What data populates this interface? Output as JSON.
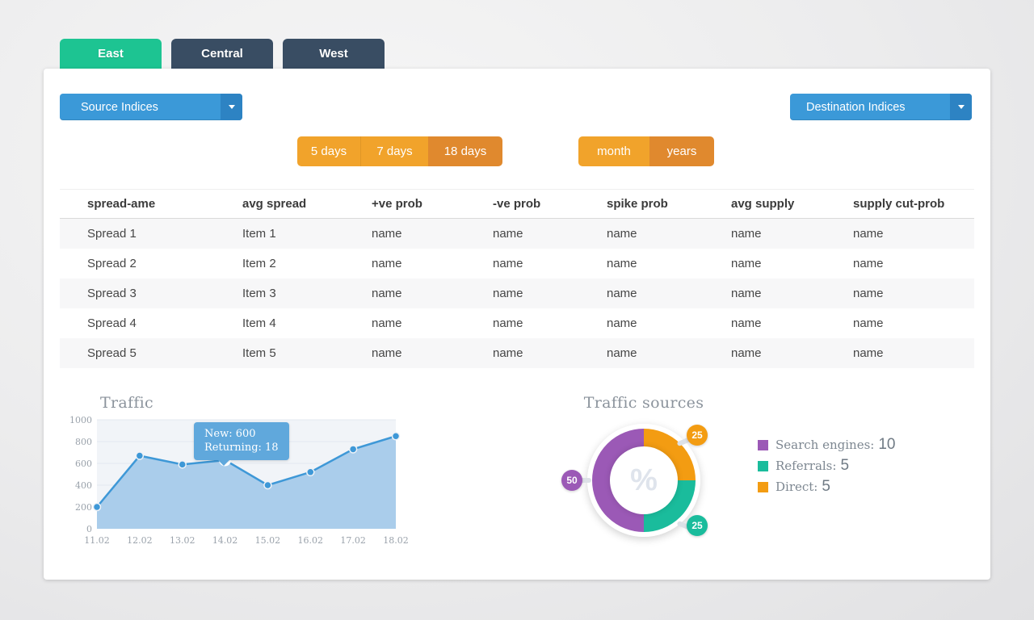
{
  "tabs": [
    {
      "label": "East",
      "active": true
    },
    {
      "label": "Central",
      "active": false
    },
    {
      "label": "West",
      "active": false
    }
  ],
  "filters": {
    "source_dropdown": {
      "label": "Source Indices"
    },
    "destination_dropdown": {
      "label": "Destination Indices"
    },
    "day_range": [
      {
        "label": "5 days",
        "active": false
      },
      {
        "label": "7 days",
        "active": false
      },
      {
        "label": "18 days",
        "active": true
      }
    ],
    "period_range": [
      {
        "label": "month",
        "active": false
      },
      {
        "label": "years",
        "active": true
      }
    ]
  },
  "table": {
    "headers": [
      "spread-ame",
      "avg spread",
      "+ve prob",
      "-ve prob",
      "spike prob",
      "avg supply",
      "supply cut-prob"
    ],
    "rows": [
      [
        "Spread 1",
        "Item 1",
        "name",
        "name",
        "name",
        "name",
        "name"
      ],
      [
        "Spread 2",
        "Item 2",
        "name",
        "name",
        "name",
        "name",
        "name"
      ],
      [
        "Spread 3",
        "Item 3",
        "name",
        "name",
        "name",
        "name",
        "name"
      ],
      [
        "Spread 4",
        "Item 4",
        "name",
        "name",
        "name",
        "name",
        "name"
      ],
      [
        "Spread 5",
        "Item 5",
        "name",
        "name",
        "name",
        "name",
        "name"
      ]
    ]
  },
  "chart_data": [
    {
      "type": "area",
      "title": "Traffic",
      "x": [
        "11.02",
        "12.02",
        "13.02",
        "14.02",
        "15.02",
        "16.02",
        "17.02",
        "18.02"
      ],
      "values": [
        200,
        670,
        590,
        630,
        400,
        520,
        730,
        850
      ],
      "ylim": [
        0,
        1000
      ],
      "yticks": [
        0,
        200,
        400,
        600,
        800,
        1000
      ],
      "grid": "horizontal",
      "line_color": "#3e98d7",
      "fill_color": "#aacdeb",
      "tooltip": {
        "point_index": 3,
        "lines": [
          "New: 600",
          "Returning: 18"
        ]
      }
    },
    {
      "type": "pie",
      "title": "Traffic sources",
      "center_label": "%",
      "slices": [
        {
          "label": "Search engines",
          "value": 10,
          "pct": 50,
          "color": "#9b59b6"
        },
        {
          "label": "Referrals",
          "value": 5,
          "pct": 25,
          "color": "#1abc9c"
        },
        {
          "label": "Direct",
          "value": 5,
          "pct": 25,
          "color": "#f39c12"
        }
      ],
      "legend": [
        {
          "text": "Search engines:",
          "value": "10",
          "color": "#9b59b6"
        },
        {
          "text": "Referrals:",
          "value": "5",
          "color": "#1abc9c"
        },
        {
          "text": "Direct:",
          "value": "5",
          "color": "#f39c12"
        }
      ],
      "badges": [
        {
          "value": "25",
          "color": "#f39c12"
        },
        {
          "value": "25",
          "color": "#1abc9c"
        },
        {
          "value": "50",
          "color": "#9b59b6"
        }
      ],
      "legend_position": "right"
    }
  ],
  "colors": {
    "active_tab": "#1dc492",
    "inactive_tab": "#394d63",
    "dropdown_blue": "#3b99d8",
    "orange": "#f1a32b",
    "orange_active": "#e0892e"
  }
}
